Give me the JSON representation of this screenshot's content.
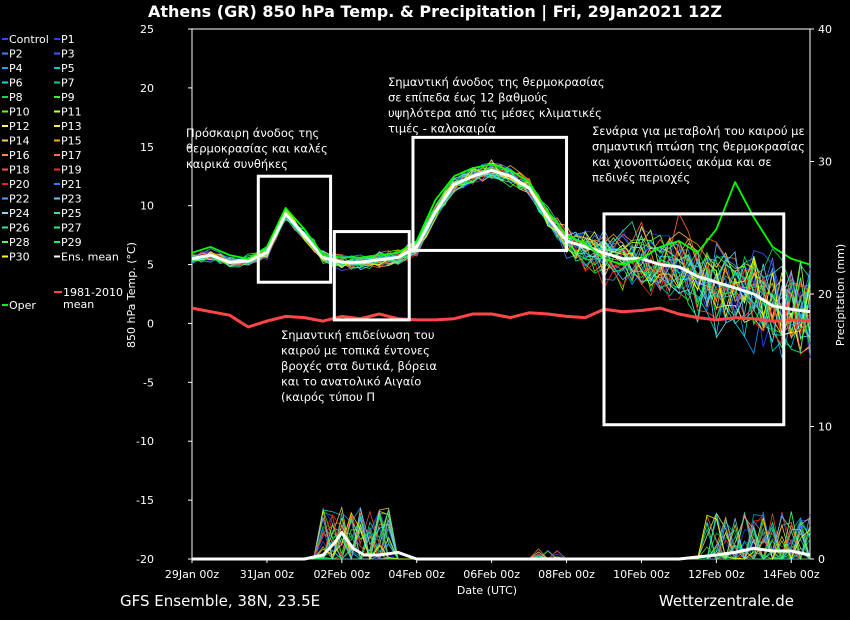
{
  "title": "Athens  (GR)  850 hPa Temp. & Precipitation | Fri, 29Jan2021 12Z",
  "footer_left": "GFS Ensemble, 38N, 23.5E",
  "footer_right": "Wetterzentrale.de",
  "chart_data": {
    "type": "line",
    "xlabel": "Date (UTC)",
    "ylabel": "850 hPa Temp. (°C)",
    "y2label": "Precipitation (mm)",
    "ylim": [
      -20,
      25
    ],
    "y2lim": [
      0,
      40
    ],
    "yticks": [
      "25",
      "20",
      "15",
      "10",
      "5",
      "0",
      "-5",
      "-10",
      "-15",
      "-20"
    ],
    "y2ticks": [
      "40",
      "30",
      "20",
      "10",
      "0"
    ],
    "xlim": [
      0,
      16.5
    ],
    "xticks": [
      {
        "x": 0,
        "label": "29Jan 00z"
      },
      {
        "x": 2,
        "label": "31Jan 00z"
      },
      {
        "x": 4,
        "label": "02Feb 00z"
      },
      {
        "x": 6,
        "label": "04Feb 00z"
      },
      {
        "x": 8,
        "label": "06Feb 00z"
      },
      {
        "x": 10,
        "label": "08Feb 00z"
      },
      {
        "x": 12,
        "label": "10Feb 00z"
      },
      {
        "x": 14,
        "label": "12Feb 00z"
      },
      {
        "x": 16,
        "label": "14Feb 00z"
      }
    ],
    "legend": {
      "placement": "left",
      "items": [
        {
          "label": "Control",
          "color": "#1e50ff"
        },
        {
          "label": "P1",
          "color": "#2a3cff"
        },
        {
          "label": "P2",
          "color": "#4682ff"
        },
        {
          "label": "P3",
          "color": "#3c5aff"
        },
        {
          "label": "P4",
          "color": "#1e9bff"
        },
        {
          "label": "P5",
          "color": "#00c8c8"
        },
        {
          "label": "P6",
          "color": "#00dcdc"
        },
        {
          "label": "P7",
          "color": "#00d28c"
        },
        {
          "label": "P8",
          "color": "#00e050"
        },
        {
          "label": "P9",
          "color": "#3cf03c"
        },
        {
          "label": "P10",
          "color": "#64ff00"
        },
        {
          "label": "P11",
          "color": "#c8ff32"
        },
        {
          "label": "P12",
          "color": "#ffff64"
        },
        {
          "label": "P13",
          "color": "#ffe650"
        },
        {
          "label": "P14",
          "color": "#ffc864"
        },
        {
          "label": "P15",
          "color": "#ffaa00"
        },
        {
          "label": "P16",
          "color": "#ff8c3c"
        },
        {
          "label": "P17",
          "color": "#ff6e3c"
        },
        {
          "label": "P18",
          "color": "#ff5050"
        },
        {
          "label": "P19",
          "color": "#ff2828"
        },
        {
          "label": "P20",
          "color": "#ff1e1e"
        },
        {
          "label": "P21",
          "color": "#3c78ff"
        },
        {
          "label": "P22",
          "color": "#50a0ff"
        },
        {
          "label": "P23",
          "color": "#64c8ff"
        },
        {
          "label": "P24",
          "color": "#78dcff"
        },
        {
          "label": "P25",
          "color": "#3cdcb4"
        },
        {
          "label": "P26",
          "color": "#32e6a0"
        },
        {
          "label": "P27",
          "color": "#28f078"
        },
        {
          "label": "P28",
          "color": "#50ff50"
        },
        {
          "label": "P29",
          "color": "#00ff64"
        },
        {
          "label": "P30",
          "color": "#ffff00"
        },
        {
          "label": "Ens. mean",
          "color": "#ffffff"
        },
        {
          "label": "1981-2010 mean",
          "color": "#ff4646"
        },
        {
          "label": "Oper",
          "color": "#00ff00"
        }
      ]
    },
    "series": [
      {
        "name": "Ens. mean",
        "color": "#ffffff",
        "x": [
          0,
          0.5,
          1,
          1.5,
          2,
          2.5,
          3,
          3.5,
          4,
          4.5,
          5,
          5.5,
          6,
          6.5,
          7,
          7.5,
          8,
          8.5,
          9,
          9.5,
          10,
          10.5,
          11,
          11.5,
          12,
          12.5,
          13,
          13.5,
          14,
          14.5,
          15,
          15.5,
          16,
          16.5
        ],
        "y": [
          5.5,
          5.8,
          5.2,
          5.3,
          6.0,
          9.3,
          7.5,
          5.6,
          5.2,
          5.2,
          5.4,
          5.6,
          6.5,
          9.5,
          11.8,
          12.5,
          13.0,
          12.5,
          11.5,
          9.0,
          7.0,
          6.5,
          6.0,
          5.5,
          5.5,
          5.0,
          4.8,
          4.0,
          3.5,
          3.0,
          2.5,
          1.5,
          1.2,
          1.0
        ]
      },
      {
        "name": "Oper",
        "color": "#00ff00",
        "x": [
          0,
          0.5,
          1,
          1.5,
          2,
          2.5,
          3,
          3.5,
          4,
          4.5,
          5,
          5.5,
          6,
          6.5,
          7,
          7.5,
          8,
          8.5,
          9,
          9.5,
          10,
          10.5,
          11,
          11.5,
          12,
          12.5,
          13,
          13.5,
          14,
          14.5,
          15,
          15.5,
          16,
          16.5
        ],
        "y": [
          6.0,
          6.5,
          5.8,
          5.5,
          6.5,
          9.8,
          8.0,
          5.8,
          5.6,
          5.6,
          5.8,
          6.0,
          7.0,
          10.5,
          12.5,
          13.2,
          13.5,
          13.0,
          12.0,
          9.5,
          7.5,
          6.8,
          5.5,
          5.0,
          5.5,
          6.5,
          7.0,
          6.0,
          8.0,
          12.0,
          9.0,
          6.5,
          5.5,
          5.0
        ]
      },
      {
        "name": "1981-2010 mean",
        "color": "#ff4646",
        "x": [
          0,
          0.5,
          1,
          1.5,
          2,
          2.5,
          3,
          3.5,
          4,
          4.5,
          5,
          5.5,
          6,
          6.5,
          7,
          7.5,
          8,
          8.5,
          9,
          9.5,
          10,
          10.5,
          11,
          11.5,
          12,
          12.5,
          13,
          13.5,
          14,
          14.5,
          15,
          15.5,
          16,
          16.5
        ],
        "y": [
          1.3,
          1.0,
          0.7,
          -0.3,
          0.2,
          0.6,
          0.5,
          0.2,
          0.6,
          0.4,
          0.8,
          0.4,
          0.3,
          0.3,
          0.4,
          0.8,
          0.8,
          0.5,
          0.9,
          0.8,
          0.6,
          0.5,
          1.2,
          1.0,
          1.1,
          1.3,
          0.8,
          0.5,
          0.3,
          0.5,
          0.4,
          0.2,
          0.3,
          0.2
        ]
      },
      {
        "name": "Ens. mean precipitation (mm)",
        "color": "#ffffff",
        "axis": "y2",
        "x": [
          0,
          1,
          2,
          3,
          3.5,
          3.8,
          4,
          4.3,
          4.6,
          5,
          5.5,
          6,
          7,
          8,
          9,
          10,
          11,
          12,
          13,
          14,
          14.5,
          15,
          15.5,
          16,
          16.5
        ],
        "y": [
          0,
          0,
          0,
          0,
          0.3,
          1.2,
          2.0,
          0.8,
          0.3,
          0.3,
          0.5,
          0,
          0,
          0,
          0,
          0,
          0,
          0,
          0,
          0.3,
          0.5,
          0.8,
          0.6,
          0.6,
          0.3
        ]
      }
    ],
    "annotations": [
      {
        "text": [
          "Πρόσκαιρη άνοδος της",
          "θερμοκρασίας και καλές",
          "καιρικά συνθήκες"
        ],
        "box": {
          "x": [
            1.77,
            3.7
          ],
          "y": [
            3.5,
            12.5
          ]
        }
      },
      {
        "text": [
          "Σημαντική επιδείνωση του",
          "καιρού με τοπικά έντονες",
          "βροχές στα δυτικά, βόρεια",
          "και το ανατολικό Αιγαίο",
          "(καιρός τύπου Π"
        ],
        "box": {
          "x": [
            3.8,
            5.8
          ],
          "y": [
            0.3,
            7.8
          ]
        }
      },
      {
        "text": [
          "Σημαντική άνοδος της θερμοκρασίας",
          "σε επίπεδα έως 12 βαθμούς",
          "υψηλότερα από τις μέσες κλιματικές",
          "τιμές - καλοκαιρία"
        ],
        "box": {
          "x": [
            5.9,
            10.0
          ],
          "y": [
            6.2,
            15.8
          ]
        }
      },
      {
        "text": [
          "Σενάρια για μεταβολή του καιρού με",
          "σημαντική πτώση της θερμοκρασίας",
          "και χιονοπτώσεις ακόμα και σε",
          "πεδινές περιοχές"
        ],
        "box": {
          "x": [
            11.0,
            15.8
          ],
          "y": [
            -8.6,
            9.3
          ]
        }
      }
    ]
  }
}
